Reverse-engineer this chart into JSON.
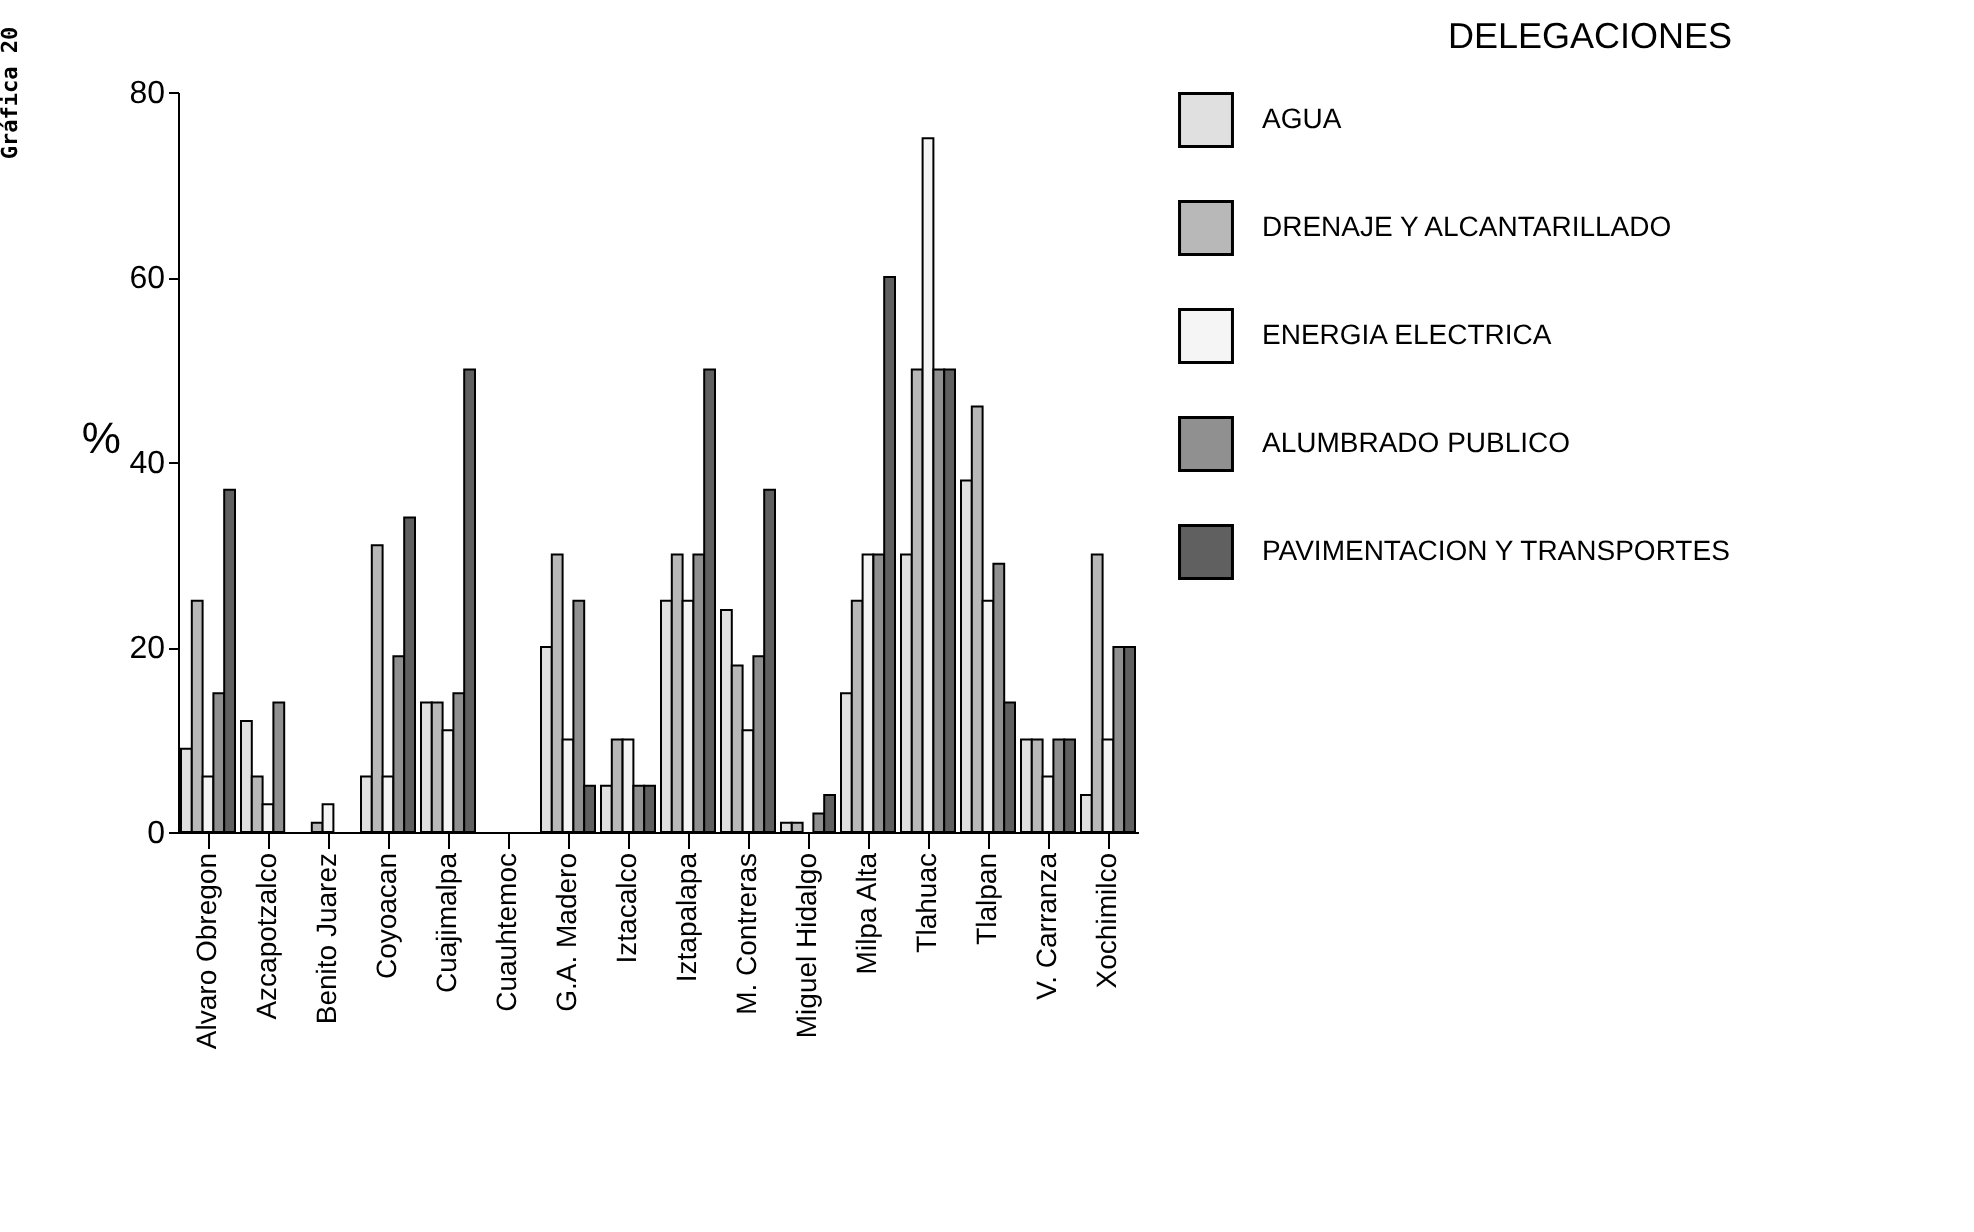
{
  "chart_data": {
    "type": "bar",
    "title": "DELEGACIONES",
    "ylabel": "%",
    "annotations": [
      "Gráfica 20"
    ],
    "categories": [
      "Alvaro Obregon",
      "Azcapotzalco",
      "Benito Juarez",
      "Coyoacan",
      "Cuajimalpa",
      "Cuauhtemoc",
      "G.A. Madero",
      "Iztacalco",
      "Iztapalapa",
      "M. Contreras",
      "Miguel Hidalgo",
      "Milpa Alta",
      "Tlahuac",
      "Tlalpan",
      "V. Carranza",
      "Xochimilco"
    ],
    "series": [
      {
        "name": "AGUA",
        "color": "#e0e0e0",
        "values": [
          9,
          12,
          0,
          6,
          14,
          0,
          20,
          5,
          25,
          24,
          1,
          15,
          30,
          38,
          10,
          4
        ]
      },
      {
        "name": "DRENAJE Y ALCANTARILLADO",
        "color": "#b8b8b8",
        "values": [
          25,
          6,
          1,
          31,
          14,
          0,
          30,
          10,
          30,
          18,
          1,
          25,
          50,
          46,
          10,
          30
        ]
      },
      {
        "name": "ENERGIA ELECTRICA",
        "color": "#f5f5f5",
        "values": [
          6,
          3,
          3,
          6,
          11,
          0,
          10,
          10,
          25,
          11,
          0,
          30,
          75,
          25,
          6,
          10
        ]
      },
      {
        "name": "ALUMBRADO PUBLICO",
        "color": "#909090",
        "values": [
          15,
          14,
          0,
          19,
          15,
          0,
          25,
          5,
          30,
          19,
          2,
          30,
          50,
          29,
          10,
          20
        ]
      },
      {
        "name": "PAVIMENTACION Y TRANSPORTES",
        "color": "#606060",
        "values": [
          37,
          0,
          0,
          34,
          50,
          0,
          5,
          5,
          50,
          37,
          4,
          60,
          50,
          14,
          10,
          20
        ]
      }
    ],
    "ylim": [
      0,
      80
    ],
    "yticks": [
      0,
      20,
      40,
      60,
      80
    ],
    "grid": false,
    "legend": "top right"
  }
}
